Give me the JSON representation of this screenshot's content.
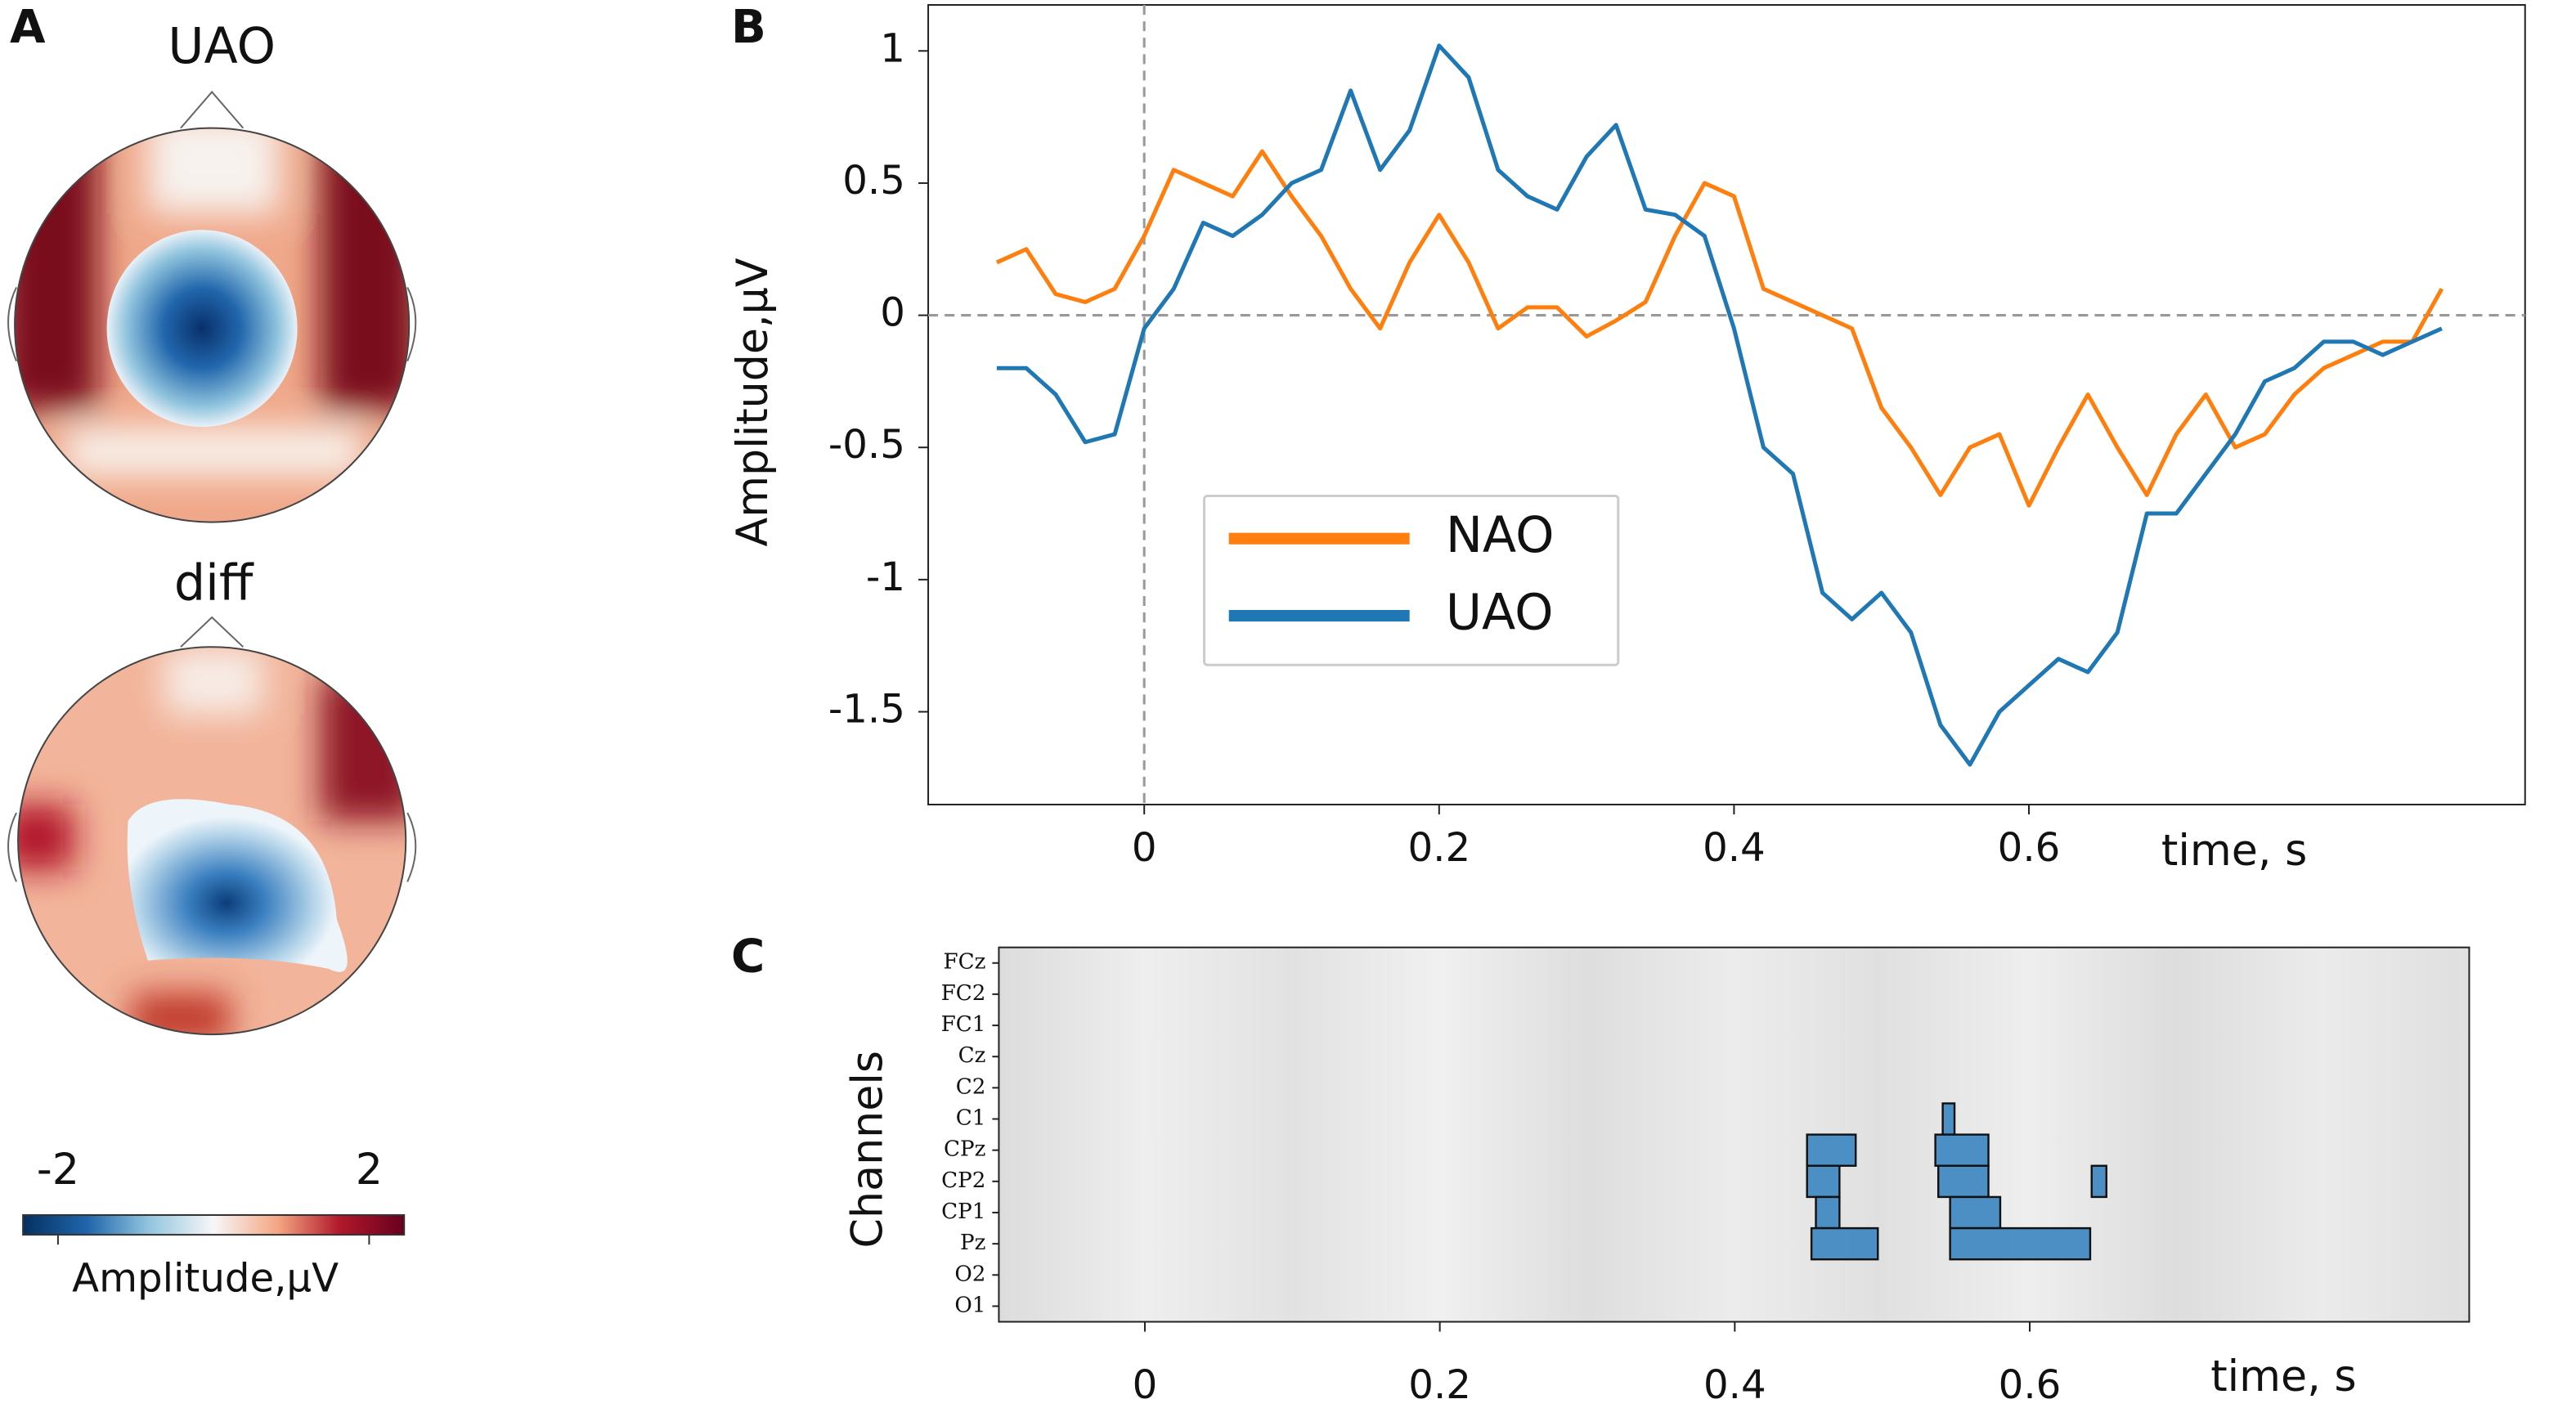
{
  "chart_data": [
    {
      "type": "topomap",
      "panel_label": "A",
      "maps": [
        {
          "title": "UAO"
        },
        {
          "title": "diff"
        }
      ],
      "colorbar": {
        "label": "Amplitude,μV",
        "clim": [
          -2.45,
          2.45
        ],
        "ticks": [
          -2,
          2
        ]
      }
    },
    {
      "type": "line",
      "panel_label": "B",
      "xlabel": "time, s",
      "ylabel": "Amplitude,μV",
      "x": [
        -0.1,
        -0.08,
        -0.06,
        -0.04,
        -0.02,
        0,
        0.02,
        0.04,
        0.06,
        0.08,
        0.1,
        0.12,
        0.14,
        0.16,
        0.18,
        0.2,
        0.22,
        0.24,
        0.26,
        0.28,
        0.3,
        0.32,
        0.34,
        0.36,
        0.38,
        0.4,
        0.42,
        0.44,
        0.46,
        0.48,
        0.5,
        0.52,
        0.54,
        0.56,
        0.58,
        0.6,
        0.62,
        0.64,
        0.66,
        0.68,
        0.7,
        0.72,
        0.74,
        0.76,
        0.78,
        0.8,
        0.82,
        0.84,
        0.86,
        0.88
      ],
      "series": [
        {
          "name": "NAO",
          "color": "#ff7f0e",
          "values": [
            0.2,
            0.25,
            0.08,
            0.05,
            0.1,
            0.3,
            0.55,
            0.5,
            0.45,
            0.62,
            0.45,
            0.3,
            0.1,
            -0.05,
            0.2,
            0.38,
            0.2,
            -0.05,
            0.03,
            0.03,
            -0.08,
            -0.02,
            0.05,
            0.3,
            0.5,
            0.45,
            0.1,
            0.05,
            0.0,
            -0.05,
            -0.35,
            -0.5,
            -0.68,
            -0.5,
            -0.45,
            -0.72,
            -0.5,
            -0.3,
            -0.5,
            -0.68,
            -0.45,
            -0.3,
            -0.5,
            -0.45,
            -0.3,
            -0.2,
            -0.15,
            -0.1,
            -0.1,
            0.1
          ]
        },
        {
          "name": "UAO",
          "color": "#1f77b4",
          "values": [
            -0.2,
            -0.2,
            -0.3,
            -0.48,
            -0.45,
            -0.05,
            0.1,
            0.35,
            0.3,
            0.38,
            0.5,
            0.55,
            0.85,
            0.55,
            0.7,
            1.02,
            0.9,
            0.55,
            0.45,
            0.4,
            0.6,
            0.72,
            0.4,
            0.38,
            0.3,
            -0.05,
            -0.5,
            -0.6,
            -1.05,
            -1.15,
            -1.05,
            -1.2,
            -1.55,
            -1.7,
            -1.5,
            -1.4,
            -1.3,
            -1.35,
            -1.2,
            -0.75,
            -0.75,
            -0.6,
            -0.45,
            -0.25,
            -0.2,
            -0.1,
            -0.1,
            -0.15,
            -0.1,
            -0.05
          ]
        }
      ],
      "xlim": [
        -0.1465,
        0.9365
      ],
      "xticks": [
        0,
        0.2,
        0.4,
        0.6
      ],
      "ylim": [
        -1.851,
        1.174
      ],
      "yticks": [
        1,
        0.5,
        0,
        -0.5,
        -1,
        -1.5
      ],
      "reference_lines": {
        "x": 0,
        "y": 0
      },
      "legend": "center left"
    },
    {
      "type": "heatmap",
      "panel_label": "C",
      "xlabel": "time, s",
      "ylabel": "Channels",
      "categories": [
        "FCz",
        "FC2",
        "FC1",
        "Cz",
        "C2",
        "C1",
        "CPz",
        "CP2",
        "CP1",
        "Pz",
        "O2",
        "O1"
      ],
      "xlim": [
        -0.099,
        0.898
      ],
      "xticks": [
        0,
        0.2,
        0.4,
        0.6
      ],
      "color": "#3a85c0",
      "clusters": [
        {
          "channel": "CPz",
          "start": 0.449,
          "end": 0.482
        },
        {
          "channel": "CP2",
          "start": 0.449,
          "end": 0.471
        },
        {
          "channel": "CP1",
          "start": 0.455,
          "end": 0.471
        },
        {
          "channel": "Pz",
          "start": 0.452,
          "end": 0.497
        },
        {
          "channel": "C1",
          "start": 0.541,
          "end": 0.549
        },
        {
          "channel": "CPz",
          "start": 0.536,
          "end": 0.572
        },
        {
          "channel": "CP2",
          "start": 0.538,
          "end": 0.572
        },
        {
          "channel": "CP1",
          "start": 0.546,
          "end": 0.58
        },
        {
          "channel": "Pz",
          "start": 0.546,
          "end": 0.641
        },
        {
          "channel": "CP2",
          "start": 0.642,
          "end": 0.652
        }
      ]
    }
  ]
}
